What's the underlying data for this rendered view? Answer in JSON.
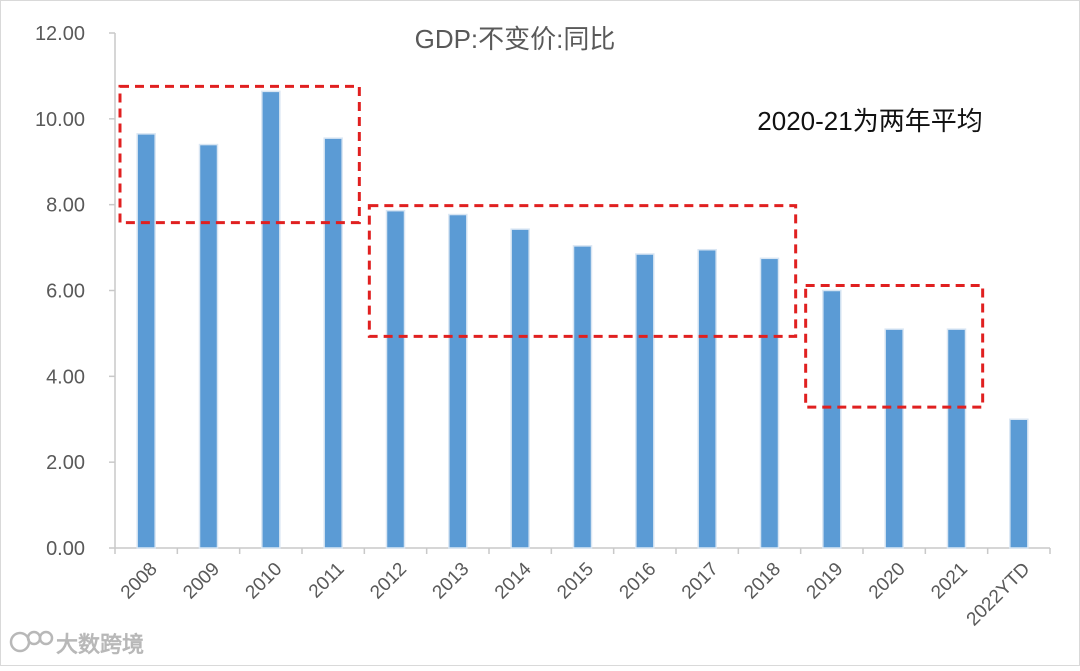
{
  "chart_data": {
    "type": "bar",
    "title": "GDP:不变价:同比",
    "annotation": "2020-21为两年平均",
    "categories": [
      "2008",
      "2009",
      "2010",
      "2011",
      "2012",
      "2013",
      "2014",
      "2015",
      "2016",
      "2017",
      "2018",
      "2019",
      "2020",
      "2021",
      "2022YTD"
    ],
    "values": [
      9.65,
      9.4,
      10.64,
      9.55,
      7.86,
      7.77,
      7.43,
      7.04,
      6.85,
      6.95,
      6.75,
      6.0,
      5.1,
      5.1,
      3.0
    ],
    "ylim": [
      0,
      12
    ],
    "yticks": [
      "0.00",
      "2.00",
      "4.00",
      "6.00",
      "8.00",
      "10.00",
      "12.00"
    ],
    "xlabel": "",
    "ylabel": "",
    "grid": false,
    "highlight_groups": [
      {
        "from": "2008",
        "to": "2011"
      },
      {
        "from": "2012",
        "to": "2018"
      },
      {
        "from": "2019",
        "to": "2021"
      }
    ],
    "colors": {
      "bar": "#5B9BD5",
      "bar_edge": "#d9e6f3",
      "axis": "#c9c9c9",
      "highlight_box": "#e02020",
      "text": "#595959"
    }
  },
  "watermark": {
    "text": "大数跨境",
    "icon": "logo-icon"
  }
}
